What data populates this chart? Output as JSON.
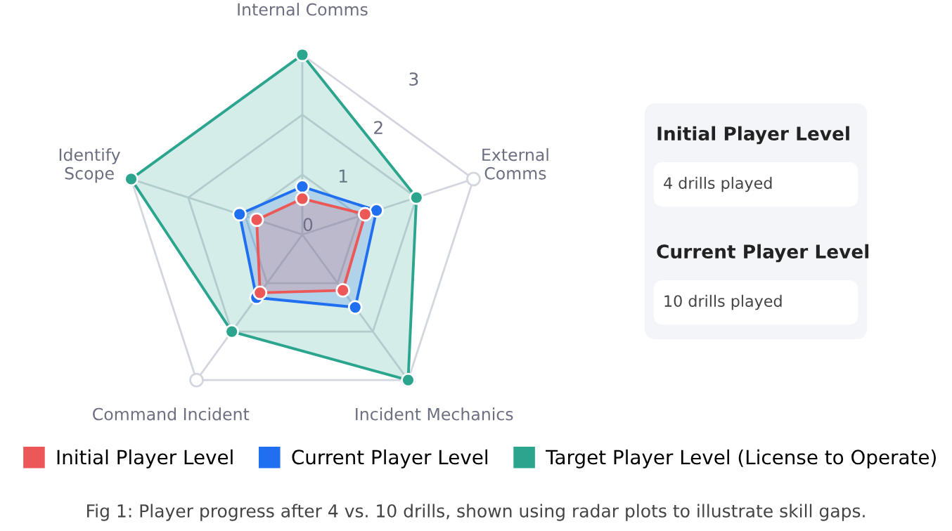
{
  "chart_data": [
    {
      "type": "radar",
      "categories": [
        "Internal Comms",
        "External Comms",
        "Incident Mechanics",
        "Command Incident",
        "Identify Scope"
      ],
      "series": [
        {
          "name": "Target Player Level (License to Operate)",
          "color": "#2ba58e",
          "values": [
            3,
            2,
            3,
            2,
            3
          ]
        },
        {
          "name": "Current Player Level",
          "color": "#1f6ff0",
          "values": [
            0.8,
            1.3,
            1.5,
            1.3,
            1.1
          ]
        },
        {
          "name": "Initial Player Level",
          "color": "#ec5757",
          "values": [
            0.6,
            1.1,
            1.15,
            1.2,
            0.8
          ]
        }
      ],
      "ylim": [
        0,
        3
      ],
      "yticks": [
        0,
        1,
        2,
        3
      ],
      "grid": true,
      "marker": "circle",
      "legend": "bottom",
      "annotations": [
        "Fig 1: Player progress after 4 vs. 10 drills, shown using radar plots to illustrate skill gaps."
      ]
    },
    {
      "type": "other",
      "annotations": [
        "Initial Player Level",
        "4 drills played",
        "Current Player Level",
        "10 drills played"
      ]
    }
  ]
}
